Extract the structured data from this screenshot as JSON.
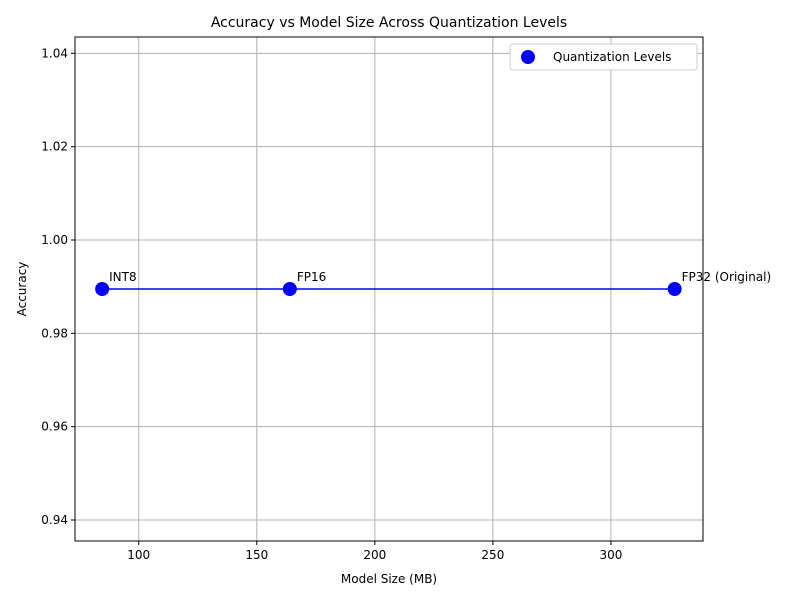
{
  "chart_data": {
    "type": "scatter",
    "title": "Accuracy vs Model Size Across Quantization Levels",
    "xlabel": "Model Size (MB)",
    "ylabel": "Accuracy",
    "xlim": [
      73,
      339
    ],
    "ylim": [
      0.9355,
      1.0435
    ],
    "xticks": [
      100,
      150,
      200,
      250,
      300
    ],
    "xtick_labels": [
      "100",
      "150",
      "200",
      "250",
      "300"
    ],
    "yticks": [
      0.94,
      0.96,
      0.98,
      1.0,
      1.02,
      1.04
    ],
    "ytick_labels": [
      "0.94",
      "0.96",
      "0.98",
      "1.00",
      "1.02",
      "1.04"
    ],
    "grid": true,
    "legend_position": "top-right",
    "series": [
      {
        "name": "Quantization Levels",
        "color": "#0000ff",
        "connect_line": true,
        "points": [
          {
            "x": 84.5,
            "y": 0.9895,
            "label": "INT8"
          },
          {
            "x": 164,
            "y": 0.9895,
            "label": "FP16"
          },
          {
            "x": 327,
            "y": 0.9895,
            "label": "FP32 (Original)"
          }
        ]
      }
    ]
  }
}
